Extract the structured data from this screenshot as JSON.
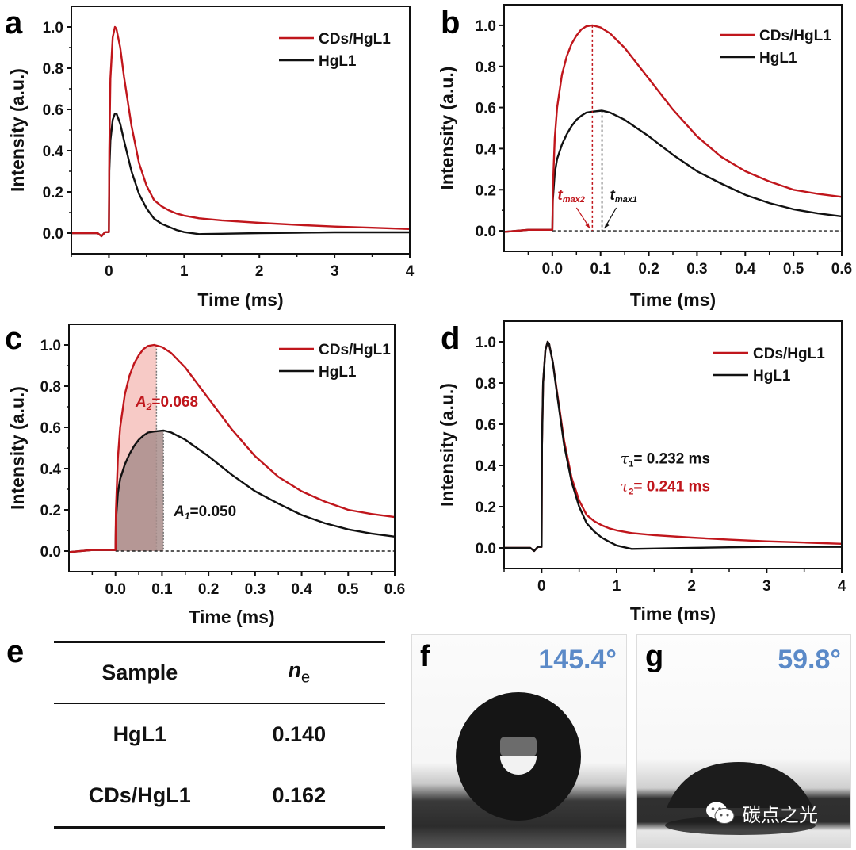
{
  "chart_data": [
    {
      "panel": "a",
      "type": "line",
      "xlabel": "Time (ms)",
      "ylabel": "Intensity (a.u.)",
      "xlim": [
        -0.5,
        4
      ],
      "ylim": [
        -0.1,
        1.1
      ],
      "xticks": [
        "0",
        "1",
        "2",
        "3",
        "4"
      ],
      "xtick_values": [
        0,
        1,
        2,
        3,
        4
      ],
      "yticks": [
        "0.0",
        "0.2",
        "0.4",
        "0.6",
        "0.8",
        "1.0"
      ],
      "ytick_values": [
        0,
        0.2,
        0.4,
        0.6,
        0.8,
        1.0
      ],
      "legend": "top-right",
      "series": [
        {
          "name": "CDs/HgL1",
          "color": "#c0161c",
          "x": [
            -0.5,
            -0.15,
            -0.1,
            -0.05,
            0,
            0.005,
            0.02,
            0.05,
            0.08,
            0.1,
            0.15,
            0.2,
            0.3,
            0.4,
            0.5,
            0.6,
            0.7,
            0.8,
            0.9,
            1.0,
            1.2,
            1.5,
            2.0,
            2.5,
            3.0,
            3.5,
            4.0
          ],
          "y": [
            0,
            0,
            -0.015,
            0.005,
            0.005,
            0.4,
            0.75,
            0.95,
            1.0,
            0.99,
            0.9,
            0.76,
            0.52,
            0.34,
            0.23,
            0.16,
            0.13,
            0.11,
            0.095,
            0.085,
            0.072,
            0.062,
            0.05,
            0.04,
            0.032,
            0.026,
            0.02
          ]
        },
        {
          "name": "HgL1",
          "color": "#111111",
          "x": [
            -0.5,
            -0.15,
            -0.1,
            -0.05,
            0,
            0.005,
            0.02,
            0.05,
            0.08,
            0.1,
            0.15,
            0.2,
            0.3,
            0.4,
            0.5,
            0.6,
            0.7,
            0.8,
            0.9,
            1.0,
            1.2,
            1.5,
            2.0,
            2.5,
            3.0,
            3.5,
            4.0
          ],
          "y": [
            0,
            0,
            -0.015,
            0.005,
            0.005,
            0.3,
            0.45,
            0.55,
            0.58,
            0.58,
            0.53,
            0.45,
            0.3,
            0.19,
            0.12,
            0.07,
            0.045,
            0.03,
            0.015,
            0.005,
            -0.005,
            -0.003,
            0,
            0.002,
            0.004,
            0.004,
            0.004
          ]
        }
      ]
    },
    {
      "panel": "b",
      "type": "line",
      "xlabel": "Time (ms)",
      "ylabel": "Intensity (a.u.)",
      "xlim": [
        -0.1,
        0.6
      ],
      "ylim": [
        -0.1,
        1.1
      ],
      "xticks": [
        "0.0",
        "0.1",
        "0.2",
        "0.3",
        "0.4",
        "0.5",
        "0.6"
      ],
      "xtick_values": [
        0,
        0.1,
        0.2,
        0.3,
        0.4,
        0.5,
        0.6
      ],
      "yticks": [
        "0.0",
        "0.2",
        "0.4",
        "0.6",
        "0.8",
        "1.0"
      ],
      "ytick_values": [
        0,
        0.2,
        0.4,
        0.6,
        0.8,
        1.0
      ],
      "legend": "top-right",
      "annotations": [
        {
          "text": "t",
          "sub": "max2",
          "x": 0.083,
          "color": "#c0161c"
        },
        {
          "text": "t",
          "sub": "max1",
          "x": 0.103,
          "color": "#111111"
        }
      ],
      "series": [
        {
          "name": "CDs/HgL1",
          "color": "#c0161c",
          "x": [
            -0.1,
            -0.05,
            0,
            0.001,
            0.005,
            0.01,
            0.02,
            0.03,
            0.04,
            0.05,
            0.06,
            0.07,
            0.083,
            0.1,
            0.12,
            0.15,
            0.2,
            0.25,
            0.3,
            0.35,
            0.4,
            0.45,
            0.5,
            0.55,
            0.6
          ],
          "y": [
            -0.005,
            0.005,
            0.005,
            0.2,
            0.45,
            0.6,
            0.76,
            0.85,
            0.91,
            0.95,
            0.98,
            0.995,
            1.0,
            0.99,
            0.96,
            0.89,
            0.74,
            0.59,
            0.46,
            0.36,
            0.29,
            0.24,
            0.2,
            0.18,
            0.165
          ]
        },
        {
          "name": "HgL1",
          "color": "#111111",
          "x": [
            -0.1,
            -0.05,
            0,
            0.001,
            0.005,
            0.01,
            0.02,
            0.03,
            0.04,
            0.05,
            0.06,
            0.07,
            0.083,
            0.103,
            0.12,
            0.15,
            0.2,
            0.25,
            0.3,
            0.35,
            0.4,
            0.45,
            0.5,
            0.55,
            0.6
          ],
          "y": [
            -0.005,
            0.005,
            0.005,
            0.15,
            0.28,
            0.35,
            0.42,
            0.47,
            0.51,
            0.54,
            0.56,
            0.575,
            0.58,
            0.585,
            0.575,
            0.54,
            0.46,
            0.37,
            0.29,
            0.23,
            0.175,
            0.135,
            0.105,
            0.085,
            0.07
          ]
        }
      ]
    },
    {
      "panel": "c",
      "type": "area",
      "xlabel": "Time (ms)",
      "ylabel": "Intensity (a.u.)",
      "xlim": [
        -0.1,
        0.6
      ],
      "ylim": [
        -0.1,
        1.1
      ],
      "xticks": [
        "0.0",
        "0.1",
        "0.2",
        "0.3",
        "0.4",
        "0.5",
        "0.6"
      ],
      "xtick_values": [
        0,
        0.1,
        0.2,
        0.3,
        0.4,
        0.5,
        0.6
      ],
      "yticks": [
        "0.0",
        "0.2",
        "0.4",
        "0.6",
        "0.8",
        "1.0"
      ],
      "ytick_values": [
        0,
        0.2,
        0.4,
        0.6,
        0.8,
        1.0
      ],
      "legend": "top-right",
      "shaded_regions": [
        {
          "series": "CDs/HgL1",
          "from": 0,
          "to": 0.088,
          "color": "#f4b8b3",
          "label": "A2",
          "label_sub": "2",
          "value": "=0.068",
          "label_color": "#c0161c",
          "label_x": 0.043,
          "label_y": 0.7
        },
        {
          "series": "HgL1",
          "from": 0,
          "to": 0.103,
          "color": "#a98e8c",
          "label": "A1",
          "label_sub": "1",
          "value": "=0.050",
          "label_color": "#111111",
          "label_x": 0.125,
          "label_y": 0.17
        }
      ],
      "series": [
        {
          "name": "CDs/HgL1",
          "color": "#c0161c",
          "x": [
            -0.1,
            -0.05,
            0,
            0.001,
            0.005,
            0.01,
            0.02,
            0.03,
            0.04,
            0.05,
            0.06,
            0.07,
            0.083,
            0.1,
            0.12,
            0.15,
            0.2,
            0.25,
            0.3,
            0.35,
            0.4,
            0.45,
            0.5,
            0.55,
            0.6
          ],
          "y": [
            -0.005,
            0.005,
            0.005,
            0.2,
            0.45,
            0.6,
            0.76,
            0.85,
            0.91,
            0.95,
            0.98,
            0.995,
            1.0,
            0.99,
            0.96,
            0.89,
            0.74,
            0.59,
            0.46,
            0.36,
            0.29,
            0.24,
            0.2,
            0.18,
            0.165
          ]
        },
        {
          "name": "HgL1",
          "color": "#111111",
          "x": [
            -0.1,
            -0.05,
            0,
            0.001,
            0.005,
            0.01,
            0.02,
            0.03,
            0.04,
            0.05,
            0.06,
            0.07,
            0.083,
            0.103,
            0.12,
            0.15,
            0.2,
            0.25,
            0.3,
            0.35,
            0.4,
            0.45,
            0.5,
            0.55,
            0.6
          ],
          "y": [
            -0.005,
            0.005,
            0.005,
            0.15,
            0.28,
            0.35,
            0.42,
            0.47,
            0.51,
            0.54,
            0.56,
            0.575,
            0.58,
            0.585,
            0.575,
            0.54,
            0.46,
            0.37,
            0.29,
            0.23,
            0.175,
            0.135,
            0.105,
            0.085,
            0.07
          ]
        }
      ]
    },
    {
      "panel": "d",
      "type": "line",
      "xlabel": "Time (ms)",
      "ylabel": "Intensity (a.u.)",
      "xlim": [
        -0.5,
        4
      ],
      "ylim": [
        -0.1,
        1.1
      ],
      "xticks": [
        "0",
        "1",
        "2",
        "3",
        "4"
      ],
      "xtick_values": [
        0,
        1,
        2,
        3,
        4
      ],
      "yticks": [
        "0.0",
        "0.2",
        "0.4",
        "0.6",
        "0.8",
        "1.0"
      ],
      "ytick_values": [
        0,
        0.2,
        0.4,
        0.6,
        0.8,
        1.0
      ],
      "legend": "top-right",
      "annotations": [
        {
          "symbol": "τ",
          "sub": "1",
          "text": "= 0.232 ms",
          "color": "#111111",
          "x": 1.05,
          "y": 0.41
        },
        {
          "symbol": "τ",
          "sub": "2",
          "text": "= 0.241 ms",
          "color": "#c0161c",
          "x": 1.05,
          "y": 0.275
        }
      ],
      "series": [
        {
          "name": "CDs/HgL1",
          "color": "#c0161c",
          "x": [
            -0.5,
            -0.15,
            -0.1,
            -0.05,
            0,
            0.005,
            0.02,
            0.05,
            0.08,
            0.1,
            0.15,
            0.2,
            0.3,
            0.4,
            0.5,
            0.6,
            0.7,
            0.8,
            0.9,
            1.0,
            1.2,
            1.5,
            2.0,
            2.5,
            3.0,
            3.5,
            4.0
          ],
          "y": [
            0,
            0,
            -0.015,
            0.005,
            0.005,
            0.5,
            0.8,
            0.96,
            1.0,
            0.99,
            0.9,
            0.77,
            0.52,
            0.34,
            0.23,
            0.16,
            0.13,
            0.11,
            0.095,
            0.085,
            0.072,
            0.062,
            0.05,
            0.04,
            0.032,
            0.026,
            0.02
          ]
        },
        {
          "name": "HgL1",
          "color": "#111111",
          "x": [
            -0.5,
            -0.15,
            -0.1,
            -0.05,
            0,
            0.005,
            0.02,
            0.05,
            0.08,
            0.1,
            0.15,
            0.2,
            0.3,
            0.4,
            0.5,
            0.6,
            0.7,
            0.8,
            0.9,
            1.0,
            1.2,
            1.5,
            2.0,
            2.5,
            3.0,
            3.5,
            4.0
          ],
          "y": [
            0,
            0,
            -0.015,
            0.005,
            0.005,
            0.5,
            0.8,
            0.96,
            1.0,
            0.99,
            0.9,
            0.76,
            0.5,
            0.32,
            0.2,
            0.12,
            0.08,
            0.05,
            0.03,
            0.012,
            -0.005,
            -0.003,
            0,
            0.003,
            0.005,
            0.005,
            0.005
          ]
        }
      ]
    }
  ],
  "panels": {
    "a": {
      "letter": "a"
    },
    "b": {
      "letter": "b"
    },
    "c": {
      "letter": "c"
    },
    "d": {
      "letter": "d"
    },
    "e": {
      "letter": "e"
    },
    "f": {
      "letter": "f",
      "angle": "145.4°"
    },
    "g": {
      "letter": "g",
      "angle": "59.8°"
    }
  },
  "table": {
    "headers": [
      "Sample",
      "n",
      "e"
    ],
    "rows": [
      {
        "sample": "HgL1",
        "ne": "0.140"
      },
      {
        "sample": "CDs/HgL1",
        "ne": "0.162"
      }
    ]
  },
  "watermark": {
    "text": "碳点之光",
    "icon": "wechat-icon"
  }
}
